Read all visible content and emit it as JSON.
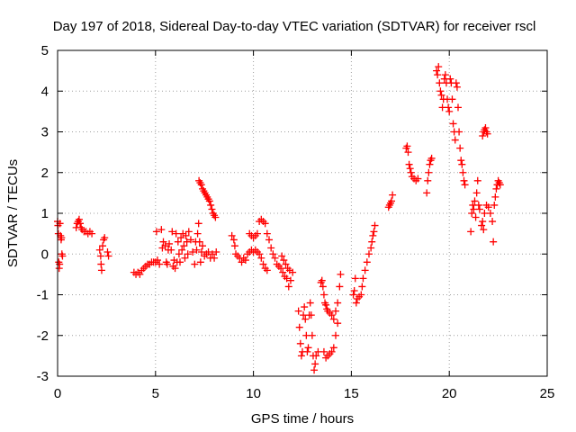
{
  "chart_data": {
    "type": "scatter",
    "title": "Day 197 of 2018, Sidereal Day-to-day VTEC variation (SDTVAR) for receiver rscl",
    "xlabel": "GPS time / hours",
    "ylabel": "SDTVAR / TECUs",
    "xlim": [
      0,
      25
    ],
    "ylim": [
      -3,
      5
    ],
    "xticks": [
      0,
      5,
      10,
      15,
      20,
      25
    ],
    "yticks": [
      -3,
      -2,
      -1,
      0,
      1,
      2,
      3,
      4,
      5
    ],
    "grid": true,
    "marker": "+",
    "color": "#ff0000",
    "series": [
      {
        "name": "SDTVAR",
        "points": [
          [
            0.0,
            0.8
          ],
          [
            0.02,
            0.7
          ],
          [
            0.04,
            0.5
          ],
          [
            0.06,
            -0.2
          ],
          [
            0.08,
            -0.35
          ],
          [
            0.1,
            -0.25
          ],
          [
            0.12,
            0.75
          ],
          [
            0.15,
            0.45
          ],
          [
            0.18,
            0.35
          ],
          [
            0.2,
            0.4
          ],
          [
            0.22,
            0.0
          ],
          [
            0.25,
            -0.05
          ],
          [
            0.95,
            0.65
          ],
          [
            1.0,
            0.75
          ],
          [
            1.05,
            0.8
          ],
          [
            1.1,
            0.85
          ],
          [
            1.15,
            0.75
          ],
          [
            1.2,
            0.65
          ],
          [
            1.25,
            0.6
          ],
          [
            1.35,
            0.55
          ],
          [
            1.45,
            0.55
          ],
          [
            1.55,
            0.5
          ],
          [
            1.65,
            0.55
          ],
          [
            1.75,
            0.5
          ],
          [
            2.15,
            0.1
          ],
          [
            2.2,
            -0.05
          ],
          [
            2.22,
            -0.25
          ],
          [
            2.25,
            -0.4
          ],
          [
            2.3,
            0.2
          ],
          [
            2.35,
            0.35
          ],
          [
            2.4,
            0.4
          ],
          [
            2.55,
            0.05
          ],
          [
            2.6,
            -0.05
          ],
          [
            3.9,
            -0.45
          ],
          [
            4.0,
            -0.5
          ],
          [
            4.1,
            -0.45
          ],
          [
            4.2,
            -0.5
          ],
          [
            4.3,
            -0.4
          ],
          [
            4.4,
            -0.35
          ],
          [
            4.5,
            -0.3
          ],
          [
            4.6,
            -0.25
          ],
          [
            4.7,
            -0.25
          ],
          [
            4.8,
            -0.2
          ],
          [
            4.9,
            -0.2
          ],
          [
            5.0,
            -0.2
          ],
          [
            5.05,
            0.55
          ],
          [
            5.1,
            -0.15
          ],
          [
            5.2,
            -0.25
          ],
          [
            5.3,
            0.6
          ],
          [
            5.35,
            0.15
          ],
          [
            5.4,
            0.3
          ],
          [
            5.5,
            0.2
          ],
          [
            5.55,
            -0.2
          ],
          [
            5.6,
            -0.25
          ],
          [
            5.65,
            0.1
          ],
          [
            5.7,
            0.25
          ],
          [
            5.8,
            0.1
          ],
          [
            5.85,
            0.55
          ],
          [
            5.9,
            -0.3
          ],
          [
            5.95,
            -0.15
          ],
          [
            6.0,
            -0.35
          ],
          [
            6.05,
            0.5
          ],
          [
            6.1,
            -0.2
          ],
          [
            6.15,
            0.3
          ],
          [
            6.2,
            0.0
          ],
          [
            6.25,
            -0.2
          ],
          [
            6.3,
            0.4
          ],
          [
            6.35,
            0.1
          ],
          [
            6.4,
            0.5
          ],
          [
            6.45,
            0.2
          ],
          [
            6.5,
            -0.1
          ],
          [
            6.55,
            0.45
          ],
          [
            6.6,
            0.3
          ],
          [
            6.65,
            0.0
          ],
          [
            6.7,
            0.55
          ],
          [
            6.8,
            0.35
          ],
          [
            6.9,
            0.05
          ],
          [
            7.0,
            -0.25
          ],
          [
            7.05,
            0.3
          ],
          [
            7.1,
            0.1
          ],
          [
            7.15,
            0.5
          ],
          [
            7.2,
            0.75
          ],
          [
            7.25,
            0.3
          ],
          [
            7.3,
            -0.2
          ],
          [
            7.35,
            0.05
          ],
          [
            7.4,
            0.2
          ],
          [
            7.5,
            -0.05
          ],
          [
            7.6,
            0.0
          ],
          [
            7.7,
            0.05
          ],
          [
            7.8,
            -0.1
          ],
          [
            7.9,
            0.0
          ],
          [
            8.0,
            -0.1
          ],
          [
            8.1,
            0.05
          ],
          [
            7.22,
            1.8
          ],
          [
            7.28,
            1.75
          ],
          [
            7.34,
            1.7
          ],
          [
            7.4,
            1.6
          ],
          [
            7.46,
            1.55
          ],
          [
            7.52,
            1.5
          ],
          [
            7.58,
            1.45
          ],
          [
            7.64,
            1.4
          ],
          [
            7.7,
            1.35
          ],
          [
            7.76,
            1.3
          ],
          [
            7.82,
            1.2
          ],
          [
            7.88,
            1.1
          ],
          [
            7.94,
            1.0
          ],
          [
            8.0,
            0.95
          ],
          [
            8.06,
            0.9
          ],
          [
            8.9,
            0.45
          ],
          [
            9.0,
            0.35
          ],
          [
            9.05,
            0.2
          ],
          [
            9.1,
            0.0
          ],
          [
            9.2,
            -0.05
          ],
          [
            9.3,
            -0.1
          ],
          [
            9.4,
            -0.2
          ],
          [
            9.5,
            -0.1
          ],
          [
            9.6,
            -0.15
          ],
          [
            9.7,
            0.0
          ],
          [
            9.8,
            0.05
          ],
          [
            9.9,
            0.1
          ],
          [
            10.0,
            0.05
          ],
          [
            10.1,
            0.1
          ],
          [
            10.2,
            0.05
          ],
          [
            10.3,
            0.0
          ],
          [
            10.4,
            -0.1
          ],
          [
            10.5,
            -0.25
          ],
          [
            10.6,
            -0.35
          ],
          [
            10.7,
            -0.4
          ],
          [
            9.8,
            0.5
          ],
          [
            9.9,
            0.45
          ],
          [
            10.0,
            0.4
          ],
          [
            10.1,
            0.45
          ],
          [
            10.2,
            0.5
          ],
          [
            10.3,
            0.8
          ],
          [
            10.4,
            0.85
          ],
          [
            10.5,
            0.8
          ],
          [
            10.6,
            0.75
          ],
          [
            10.7,
            0.5
          ],
          [
            10.8,
            0.35
          ],
          [
            10.9,
            0.15
          ],
          [
            11.0,
            0.0
          ],
          [
            11.1,
            -0.1
          ],
          [
            11.2,
            -0.25
          ],
          [
            11.3,
            -0.3
          ],
          [
            11.4,
            -0.35
          ],
          [
            11.5,
            -0.45
          ],
          [
            11.6,
            -0.55
          ],
          [
            11.7,
            -0.6
          ],
          [
            11.8,
            -0.8
          ],
          [
            11.9,
            -0.65
          ],
          [
            12.0,
            -0.45
          ],
          [
            11.45,
            -0.05
          ],
          [
            11.55,
            -0.15
          ],
          [
            11.65,
            -0.25
          ],
          [
            11.75,
            -0.35
          ],
          [
            11.85,
            -0.4
          ],
          [
            12.3,
            -1.4
          ],
          [
            12.35,
            -1.8
          ],
          [
            12.4,
            -2.2
          ],
          [
            12.45,
            -2.5
          ],
          [
            12.5,
            -2.4
          ],
          [
            12.55,
            -1.5
          ],
          [
            12.6,
            -1.3
          ],
          [
            12.65,
            -1.6
          ],
          [
            12.7,
            -2.0
          ],
          [
            12.75,
            -2.4
          ],
          [
            12.8,
            -2.3
          ],
          [
            12.85,
            -1.5
          ],
          [
            12.9,
            -1.2
          ],
          [
            12.95,
            -1.5
          ],
          [
            13.0,
            -2.0
          ],
          [
            13.05,
            -2.5
          ],
          [
            13.1,
            -2.85
          ],
          [
            13.15,
            -2.7
          ],
          [
            13.2,
            -2.5
          ],
          [
            13.3,
            -2.4
          ],
          [
            13.45,
            -0.7
          ],
          [
            13.5,
            -0.65
          ],
          [
            13.55,
            -0.8
          ],
          [
            13.6,
            -1.0
          ],
          [
            13.65,
            -1.2
          ],
          [
            13.7,
            -1.25
          ],
          [
            13.75,
            -1.35
          ],
          [
            13.8,
            -1.4
          ],
          [
            13.9,
            -1.45
          ],
          [
            14.0,
            -1.5
          ],
          [
            14.1,
            -1.6
          ],
          [
            14.2,
            -1.4
          ],
          [
            14.3,
            -1.2
          ],
          [
            14.4,
            -0.8
          ],
          [
            14.45,
            -0.5
          ],
          [
            13.6,
            -2.4
          ],
          [
            13.7,
            -2.55
          ],
          [
            13.8,
            -2.5
          ],
          [
            13.9,
            -2.45
          ],
          [
            14.0,
            -2.4
          ],
          [
            14.1,
            -2.3
          ],
          [
            14.2,
            -2.0
          ],
          [
            14.3,
            -1.7
          ],
          [
            15.1,
            -1.0
          ],
          [
            15.15,
            -0.9
          ],
          [
            15.2,
            -0.6
          ],
          [
            15.25,
            -1.2
          ],
          [
            15.3,
            -1.1
          ],
          [
            15.4,
            -1.05
          ],
          [
            15.5,
            -1.0
          ],
          [
            15.55,
            -0.8
          ],
          [
            15.6,
            -0.6
          ],
          [
            15.7,
            -0.4
          ],
          [
            15.8,
            -0.2
          ],
          [
            15.9,
            0.0
          ],
          [
            16.0,
            0.15
          ],
          [
            16.05,
            0.3
          ],
          [
            16.1,
            0.45
          ],
          [
            16.15,
            0.55
          ],
          [
            16.2,
            0.7
          ],
          [
            16.9,
            1.15
          ],
          [
            16.95,
            1.2
          ],
          [
            17.0,
            1.25
          ],
          [
            17.05,
            1.3
          ],
          [
            17.1,
            1.45
          ],
          [
            17.8,
            2.6
          ],
          [
            17.85,
            2.65
          ],
          [
            17.9,
            2.5
          ],
          [
            17.95,
            2.2
          ],
          [
            18.0,
            2.1
          ],
          [
            18.05,
            2.0
          ],
          [
            18.1,
            1.9
          ],
          [
            18.2,
            1.85
          ],
          [
            18.3,
            1.8
          ],
          [
            18.4,
            1.85
          ],
          [
            18.85,
            1.5
          ],
          [
            18.9,
            1.8
          ],
          [
            18.95,
            2.0
          ],
          [
            19.0,
            2.2
          ],
          [
            19.05,
            2.3
          ],
          [
            19.1,
            2.35
          ],
          [
            19.35,
            4.5
          ],
          [
            19.4,
            4.4
          ],
          [
            19.45,
            4.6
          ],
          [
            19.5,
            4.2
          ],
          [
            19.55,
            4.0
          ],
          [
            19.6,
            3.9
          ],
          [
            19.65,
            3.6
          ],
          [
            19.7,
            3.8
          ],
          [
            19.75,
            4.3
          ],
          [
            19.8,
            4.4
          ],
          [
            19.85,
            4.2
          ],
          [
            19.9,
            3.8
          ],
          [
            19.95,
            3.6
          ],
          [
            20.0,
            3.5
          ],
          [
            20.05,
            4.3
          ],
          [
            20.1,
            4.2
          ],
          [
            20.15,
            3.8
          ],
          [
            20.2,
            3.2
          ],
          [
            20.25,
            3.0
          ],
          [
            20.3,
            2.8
          ],
          [
            20.35,
            4.2
          ],
          [
            20.4,
            4.1
          ],
          [
            20.45,
            3.6
          ],
          [
            20.5,
            3.0
          ],
          [
            20.55,
            2.6
          ],
          [
            20.6,
            2.3
          ],
          [
            20.65,
            2.2
          ],
          [
            20.7,
            2.0
          ],
          [
            20.75,
            1.8
          ],
          [
            20.8,
            1.7
          ],
          [
            21.1,
            0.55
          ],
          [
            21.15,
            1.0
          ],
          [
            21.2,
            1.2
          ],
          [
            21.25,
            1.1
          ],
          [
            21.3,
            1.3
          ],
          [
            21.35,
            0.9
          ],
          [
            21.4,
            1.5
          ],
          [
            21.45,
            1.8
          ],
          [
            21.5,
            1.2
          ],
          [
            21.55,
            1.1
          ],
          [
            21.7,
            2.9
          ],
          [
            21.75,
            3.0
          ],
          [
            21.8,
            3.05
          ],
          [
            21.85,
            3.1
          ],
          [
            21.9,
            3.0
          ],
          [
            21.95,
            2.95
          ],
          [
            21.65,
            0.7
          ],
          [
            21.7,
            0.8
          ],
          [
            21.75,
            0.6
          ],
          [
            21.8,
            1.0
          ],
          [
            21.9,
            1.2
          ],
          [
            22.0,
            1.15
          ],
          [
            22.1,
            1.0
          ],
          [
            22.2,
            0.8
          ],
          [
            22.25,
            0.3
          ],
          [
            22.3,
            1.2
          ],
          [
            22.35,
            1.4
          ],
          [
            22.4,
            1.6
          ],
          [
            22.45,
            1.7
          ],
          [
            22.5,
            1.8
          ],
          [
            22.55,
            1.75
          ],
          [
            22.6,
            1.7
          ]
        ]
      }
    ]
  }
}
